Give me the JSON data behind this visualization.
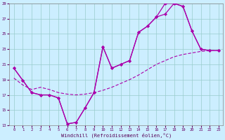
{
  "xlabel": "Windchill (Refroidissement éolien,°C)",
  "bg_color": "#cceeff",
  "line_color": "#aa00aa",
  "grid_color": "#99cccc",
  "xlim": [
    -0.5,
    23.5
  ],
  "ylim": [
    13,
    29
  ],
  "xticks": [
    0,
    1,
    2,
    3,
    4,
    5,
    6,
    7,
    8,
    9,
    10,
    11,
    12,
    13,
    14,
    15,
    16,
    17,
    18,
    19,
    20,
    21,
    22,
    23
  ],
  "yticks": [
    13,
    15,
    17,
    19,
    21,
    23,
    25,
    27,
    29
  ],
  "line1_x": [
    0,
    1,
    2,
    3,
    4,
    5,
    6,
    7,
    8,
    9,
    10,
    11,
    12,
    13,
    14,
    15,
    16,
    17,
    18,
    19,
    20,
    21,
    22,
    23
  ],
  "line1_y": [
    20.5,
    18.9,
    17.3,
    17.0,
    17.0,
    16.6,
    13.2,
    13.4,
    15.3,
    17.3,
    23.3,
    20.5,
    21.0,
    21.5,
    25.2,
    26.0,
    27.2,
    29.0,
    29.0,
    28.6,
    25.4,
    23.0,
    22.8,
    22.8
  ],
  "line2_x": [
    0,
    1,
    2,
    3,
    4,
    5,
    6,
    7,
    8,
    9,
    10,
    11,
    12,
    13,
    14,
    15,
    16,
    17,
    18,
    19,
    20,
    21,
    22,
    23
  ],
  "line2_y": [
    20.5,
    18.9,
    17.3,
    17.0,
    17.0,
    16.6,
    13.2,
    13.4,
    15.3,
    17.3,
    23.3,
    20.5,
    21.0,
    21.5,
    25.2,
    26.0,
    27.2,
    27.6,
    29.0,
    28.6,
    25.4,
    23.0,
    22.8,
    22.8
  ],
  "line3_x": [
    0,
    1,
    2,
    3,
    4,
    5,
    6,
    7,
    8,
    9,
    10,
    11,
    12,
    13,
    14,
    15,
    16,
    17,
    18,
    19,
    20,
    21,
    22,
    23
  ],
  "line3_y": [
    19.2,
    18.3,
    17.7,
    18.0,
    17.7,
    17.3,
    17.1,
    17.0,
    17.1,
    17.3,
    17.6,
    18.0,
    18.5,
    19.0,
    19.6,
    20.3,
    21.0,
    21.5,
    22.0,
    22.3,
    22.5,
    22.7,
    22.8,
    22.8
  ]
}
